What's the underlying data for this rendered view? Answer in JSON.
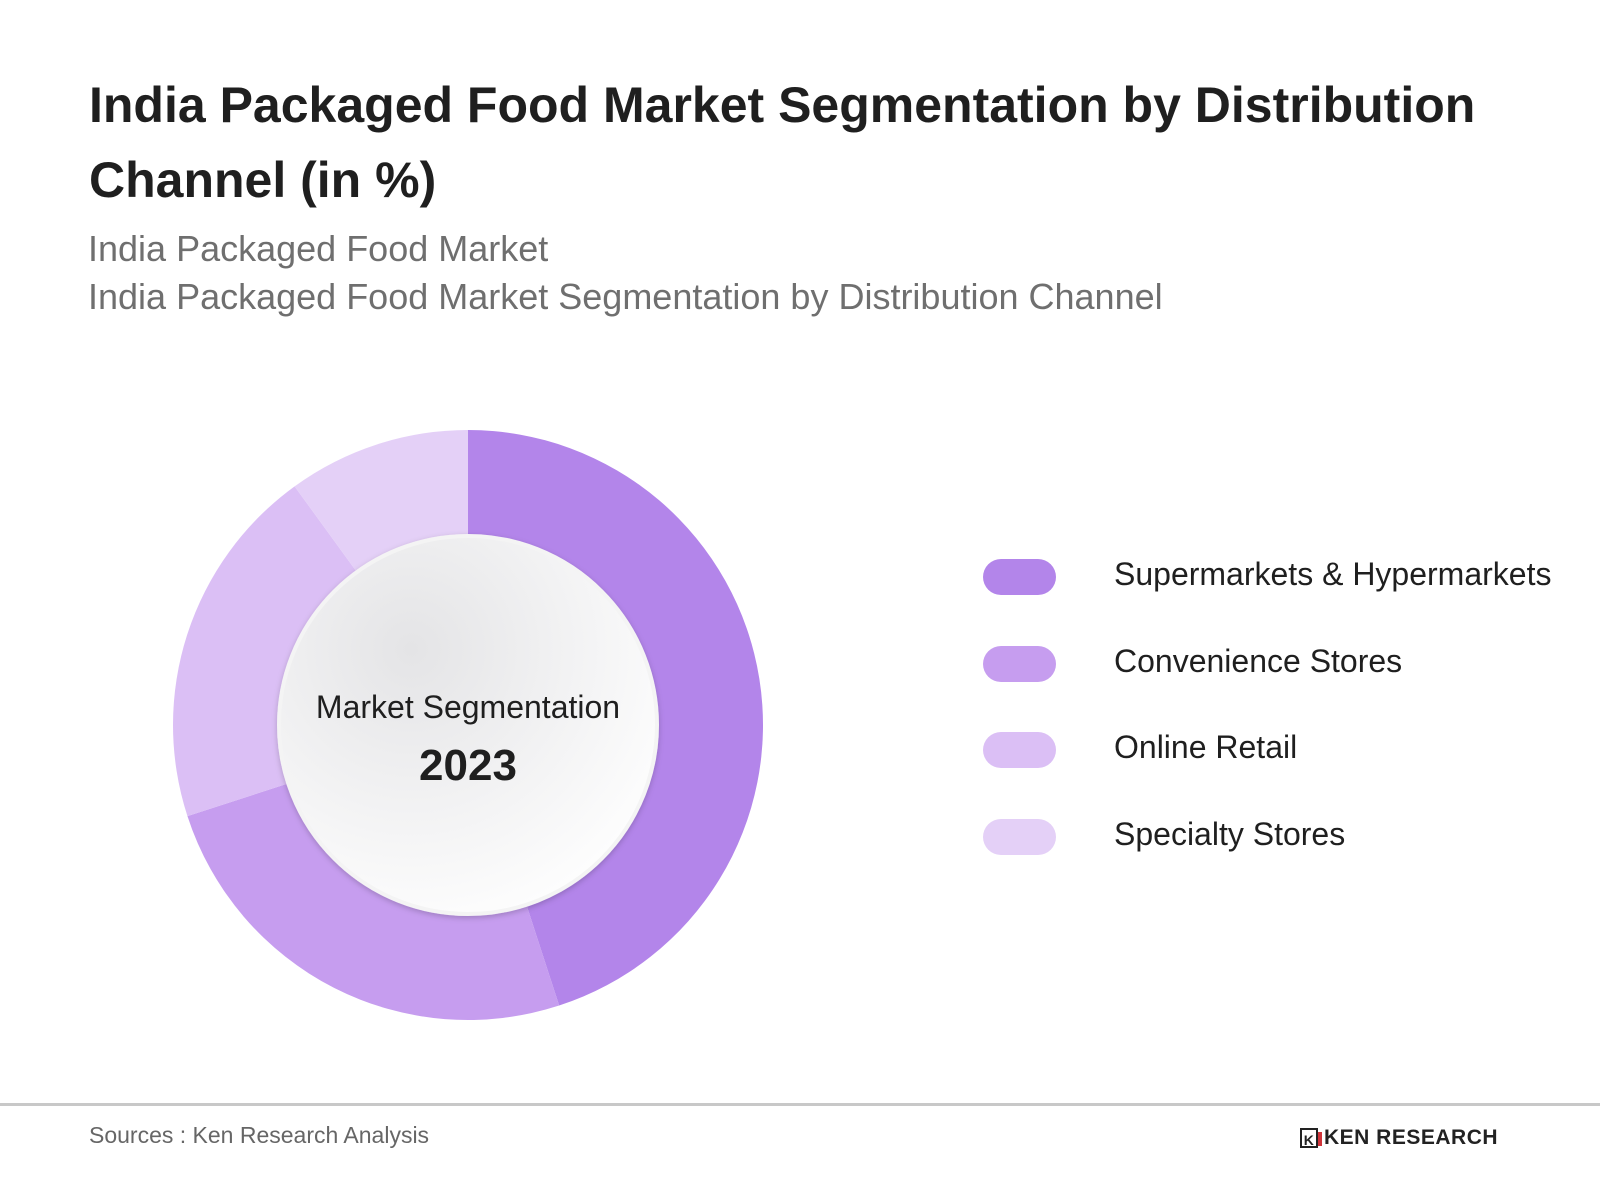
{
  "title": "India Packaged Food Market Segmentation by Distribution Channel (in %)",
  "subtitle_lines": [
    "India Packaged Food Market",
    "India Packaged Food Market Segmentation by Distribution Channel"
  ],
  "chart_data": {
    "type": "pie",
    "variant": "donut",
    "title": "India Packaged Food Market Segmentation by Distribution Channel (in %)",
    "center_label": "Market Segmentation",
    "center_value": "2023",
    "categories": [
      "Supermarkets & Hypermarkets",
      "Convenience Stores",
      "Online Retail",
      "Specialty Stores"
    ],
    "values": [
      45,
      25,
      20,
      10
    ],
    "colors": [
      "#b385ea",
      "#c69def",
      "#dbbff5",
      "#e4d0f7"
    ],
    "legend_position": "right"
  },
  "footer": {
    "source": "Sources : Ken Research Analysis",
    "logo_text": "KEN RESEARCH"
  }
}
